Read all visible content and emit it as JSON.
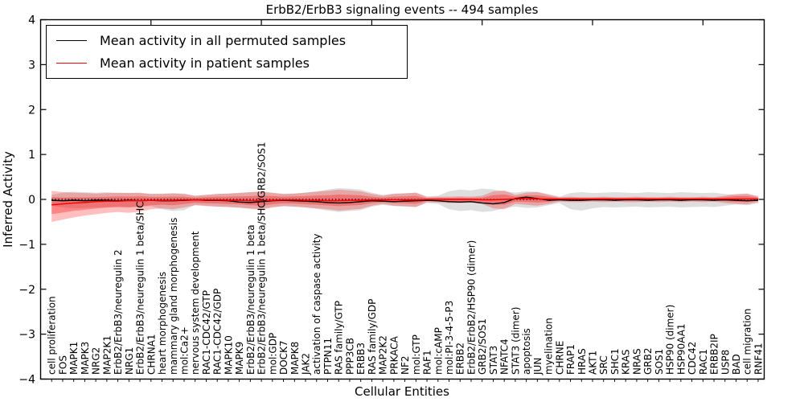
{
  "title": "ErbB2/ErbB3 signaling events -- 494 samples",
  "axes": {
    "ylabel": "Inferred Activity",
    "xlabel": "Cellular Entities",
    "ylim": [
      -4,
      4
    ],
    "yticks": [
      "4",
      "3",
      "2",
      "1",
      "0",
      "−1",
      "−2",
      "−3",
      "−4"
    ],
    "ytick_values": [
      4,
      3,
      2,
      1,
      0,
      -1,
      -2,
      -3,
      -4
    ],
    "xticks_every": 10
  },
  "legend": {
    "items": [
      {
        "label": "Mean activity in all permuted samples",
        "color": "#000000"
      },
      {
        "label": "Mean activity in patient samples",
        "color": "#ff0000"
      }
    ]
  },
  "chart_data": {
    "type": "line",
    "title": "ErbB2/ErbB3 signaling events -- 494 samples",
    "xlabel": "Cellular Entities",
    "ylabel": "Inferred Activity",
    "ylim": [
      -4,
      4
    ],
    "grid": false,
    "legend_position": "upper left",
    "zero_line": true,
    "inner_band_scale": 0.55,
    "categories": [
      "cell proliferation",
      "FOS",
      "MAPK1",
      "MAPK3",
      "NRG2",
      "MAP2K1",
      "ErbB2/ErbB3/neuregulin 2",
      "NRG1",
      "ErbB2/ErbB3/neuregulin 1 beta/SHC",
      "CHRNA1",
      "heart morphogenesis",
      "mammary gland morphogenesis",
      "mol:Ca2+",
      "nervous system development",
      "RAC1-CDC42/GTP",
      "RAC1-CDC42/GDP",
      "MAPK10",
      "MAPK9",
      "ErbB2/ErbB3/neuregulin 1 beta",
      "ErbB2/ErbB3/neuregulin 1 beta/SHC/GRB2/SOS1",
      "mol:GDP",
      "DOCK7",
      "MAPK8",
      "JAK2",
      "activation of caspase activity",
      "PTPN11",
      "RAS family/GTP",
      "PPP3CB",
      "ERBB3",
      "RAS family/GDP",
      "MAP2K2",
      "PRKACA",
      "NF2",
      "mol:GTP",
      "RAF1",
      "mol:cAMP",
      "mol:PI-3-4-5-P3",
      "ERBB2",
      "ErbB2/ErbB2/HSP90 (dimer)",
      "GRB2/SOS1",
      "STAT3",
      "NFATC4",
      "STAT3 (dimer)",
      "apoptosis",
      "JUN",
      "myelination",
      "CHRNE",
      "FRAP1",
      "HRAS",
      "AKT1",
      "SRC",
      "SHC1",
      "KRAS",
      "NRAS",
      "GRB2",
      "SOS1",
      "HSP90 (dimer)",
      "HSP90AA1",
      "CDC42",
      "RAC1",
      "ERBB2IP",
      "USP8",
      "BAD",
      "cell migration",
      "RNF41"
    ],
    "series": [
      {
        "name": "Mean activity in all permuted samples",
        "color": "#000000",
        "values": [
          -0.02,
          -0.03,
          -0.02,
          -0.03,
          -0.02,
          -0.02,
          -0.03,
          -0.02,
          -0.03,
          -0.02,
          -0.03,
          -0.03,
          -0.02,
          -0.01,
          -0.02,
          -0.02,
          -0.03,
          -0.06,
          -0.07,
          -0.05,
          -0.03,
          -0.02,
          -0.03,
          -0.04,
          -0.05,
          -0.07,
          -0.08,
          -0.07,
          -0.05,
          -0.03,
          -0.04,
          -0.05,
          -0.04,
          -0.03,
          -0.02,
          -0.03,
          -0.05,
          -0.06,
          -0.05,
          -0.08,
          -0.1,
          -0.07,
          0.02,
          0.05,
          0.02,
          -0.02,
          -0.01,
          -0.02,
          -0.02,
          -0.01,
          -0.01,
          -0.02,
          -0.01,
          -0.01,
          -0.02,
          -0.01,
          -0.01,
          -0.02,
          -0.01,
          -0.01,
          -0.02,
          -0.01,
          -0.02,
          -0.03,
          -0.02
        ]
      },
      {
        "name": "Mean activity in patient samples",
        "color": "#ff0000",
        "values": [
          -0.12,
          -0.1,
          -0.08,
          -0.07,
          -0.05,
          -0.04,
          -0.04,
          -0.03,
          -0.03,
          -0.02,
          -0.02,
          -0.02,
          -0.01,
          -0.01,
          -0.01,
          -0.01,
          -0.02,
          -0.02,
          -0.03,
          -0.03,
          -0.02,
          -0.01,
          -0.01,
          -0.02,
          -0.02,
          -0.03,
          -0.03,
          -0.02,
          -0.02,
          -0.01,
          -0.01,
          -0.01,
          -0.01,
          -0.01,
          0.0,
          0.0,
          0.0,
          0.0,
          0.0,
          -0.01,
          -0.01,
          0.0,
          0.01,
          0.02,
          0.01,
          0.01,
          0.01,
          0.01,
          0.01,
          0.01,
          0.01,
          0.01,
          0.01,
          0.01,
          0.01,
          0.01,
          0.01,
          0.01,
          0.01,
          0.01,
          0.01,
          0.01,
          0.01,
          0.01,
          0.01
        ]
      }
    ],
    "bands": [
      {
        "name": "permuted-samples-range",
        "color": "rgba(0,0,0,0.13)",
        "upper": [
          0.1,
          0.15,
          0.17,
          0.16,
          0.15,
          0.16,
          0.14,
          0.15,
          0.14,
          0.12,
          0.13,
          0.14,
          0.13,
          0.08,
          0.1,
          0.12,
          0.13,
          0.15,
          0.16,
          0.17,
          0.14,
          0.12,
          0.13,
          0.15,
          0.18,
          0.22,
          0.25,
          0.24,
          0.22,
          0.15,
          0.1,
          0.13,
          0.14,
          0.15,
          0.07,
          0.08,
          0.18,
          0.22,
          0.2,
          0.24,
          0.22,
          0.18,
          0.15,
          0.18,
          0.17,
          0.12,
          0.06,
          0.14,
          0.16,
          0.14,
          0.15,
          0.16,
          0.15,
          0.14,
          0.16,
          0.15,
          0.14,
          0.16,
          0.15,
          0.14,
          0.15,
          0.12,
          0.1,
          0.12,
          0.08
        ],
        "lower": [
          -0.14,
          -0.18,
          -0.2,
          -0.19,
          -0.18,
          -0.17,
          -0.16,
          -0.17,
          -0.16,
          -0.15,
          -0.22,
          -0.26,
          -0.24,
          -0.12,
          -0.14,
          -0.16,
          -0.17,
          -0.19,
          -0.2,
          -0.21,
          -0.17,
          -0.15,
          -0.16,
          -0.18,
          -0.21,
          -0.25,
          -0.28,
          -0.26,
          -0.24,
          -0.16,
          -0.12,
          -0.15,
          -0.16,
          -0.17,
          -0.08,
          -0.1,
          -0.22,
          -0.26,
          -0.24,
          -0.28,
          -0.26,
          -0.2,
          -0.16,
          -0.19,
          -0.18,
          -0.13,
          -0.08,
          -0.22,
          -0.25,
          -0.2,
          -0.17,
          -0.18,
          -0.17,
          -0.16,
          -0.18,
          -0.17,
          -0.16,
          -0.18,
          -0.17,
          -0.16,
          -0.17,
          -0.14,
          -0.11,
          -0.13,
          -0.09
        ]
      },
      {
        "name": "patient-samples-range",
        "color": "rgba(255,0,0,0.25)",
        "inner_color": "rgba(255,0,0,0.30)",
        "upper": [
          0.19,
          0.16,
          0.15,
          0.14,
          0.13,
          0.14,
          0.15,
          0.14,
          0.15,
          0.12,
          0.12,
          0.13,
          0.12,
          0.08,
          0.1,
          0.12,
          0.13,
          0.14,
          0.16,
          0.18,
          0.15,
          0.12,
          0.13,
          0.15,
          0.17,
          0.19,
          0.22,
          0.2,
          0.18,
          0.12,
          0.08,
          0.12,
          0.13,
          0.15,
          0.05,
          0.06,
          0.06,
          0.07,
          0.06,
          0.08,
          0.18,
          0.2,
          0.1,
          0.15,
          0.16,
          0.1,
          0.05,
          0.06,
          0.05,
          0.05,
          0.06,
          0.05,
          0.05,
          0.06,
          0.05,
          0.05,
          0.06,
          0.05,
          0.05,
          0.06,
          0.05,
          0.08,
          0.12,
          0.13,
          0.06
        ],
        "lower": [
          -0.5,
          -0.45,
          -0.4,
          -0.36,
          -0.33,
          -0.3,
          -0.28,
          -0.3,
          -0.27,
          -0.22,
          -0.2,
          -0.22,
          -0.18,
          -0.13,
          -0.15,
          -0.16,
          -0.17,
          -0.18,
          -0.21,
          -0.23,
          -0.18,
          -0.15,
          -0.16,
          -0.18,
          -0.2,
          -0.22,
          -0.25,
          -0.23,
          -0.21,
          -0.14,
          -0.1,
          -0.14,
          -0.15,
          -0.17,
          -0.06,
          -0.07,
          -0.08,
          -0.08,
          -0.07,
          -0.1,
          -0.2,
          -0.22,
          -0.1,
          -0.12,
          -0.14,
          -0.1,
          -0.05,
          -0.06,
          -0.06,
          -0.05,
          -0.06,
          -0.05,
          -0.06,
          -0.06,
          -0.05,
          -0.06,
          -0.05,
          -0.06,
          -0.05,
          -0.06,
          -0.05,
          -0.08,
          -0.1,
          -0.11,
          -0.06
        ]
      }
    ]
  }
}
